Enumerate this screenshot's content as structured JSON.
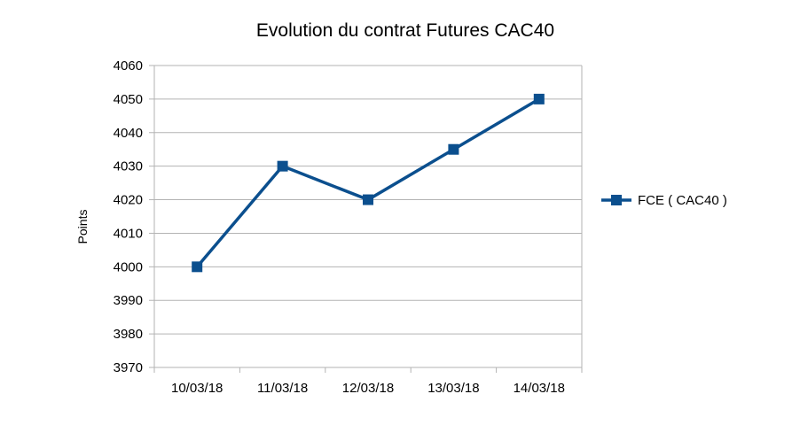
{
  "chart_data": {
    "type": "line",
    "title": "Evolution du contrat Futures CAC40",
    "xlabel": "",
    "ylabel": "Points",
    "categories": [
      "10/03/18",
      "11/03/18",
      "12/03/18",
      "13/03/18",
      "14/03/18"
    ],
    "series": [
      {
        "name": "FCE ( CAC40 )",
        "values": [
          4000,
          4030,
          4020,
          4035,
          4050
        ],
        "color": "#0b4f8e",
        "marker": "square"
      }
    ],
    "ylim": [
      3970,
      4060
    ],
    "yticks": [
      4060,
      4050,
      4040,
      4030,
      4020,
      4010,
      4000,
      3990,
      3980,
      3970
    ],
    "grid": true,
    "legend_position": "right",
    "gridline_color": "#b3b3b3",
    "axis_color": "#b3b3b3"
  }
}
